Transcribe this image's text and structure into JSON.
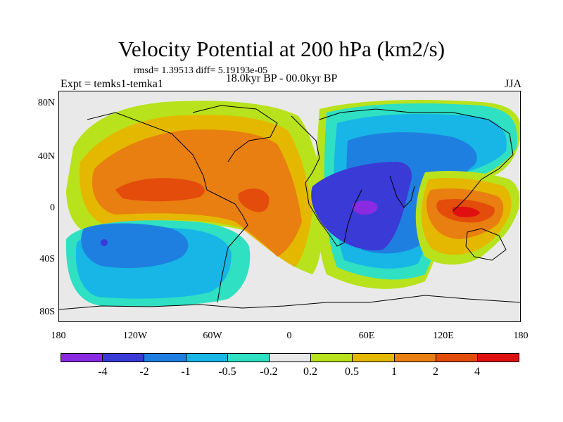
{
  "header": {
    "title": "Velocity Potential at 200 hPa (km2/s)",
    "stats": "rmsd= 1.39513 diff= 5.19193e-05",
    "experiment": "Expt = temks1-temka1",
    "period": "18.0kyr BP - 00.0kyr BP",
    "season": "JJA"
  },
  "axes": {
    "y_ticks": [
      "80N",
      "40N",
      "0",
      "40S",
      "80S"
    ],
    "x_ticks": [
      "180",
      "120W",
      "60W",
      "0",
      "60E",
      "120E",
      "180"
    ]
  },
  "colorbar": {
    "colors": [
      "#8a2be2",
      "#3a3ad6",
      "#1f7fe0",
      "#17b6e6",
      "#2fe0c2",
      "#e9e9e9",
      "#b8e21c",
      "#e5b800",
      "#e87f10",
      "#e44c0c",
      "#e01010"
    ],
    "labels": [
      "-4",
      "-2",
      "-1",
      "-0.5",
      "-0.2",
      "0.2",
      "0.5",
      "1",
      "2",
      "4"
    ]
  }
}
